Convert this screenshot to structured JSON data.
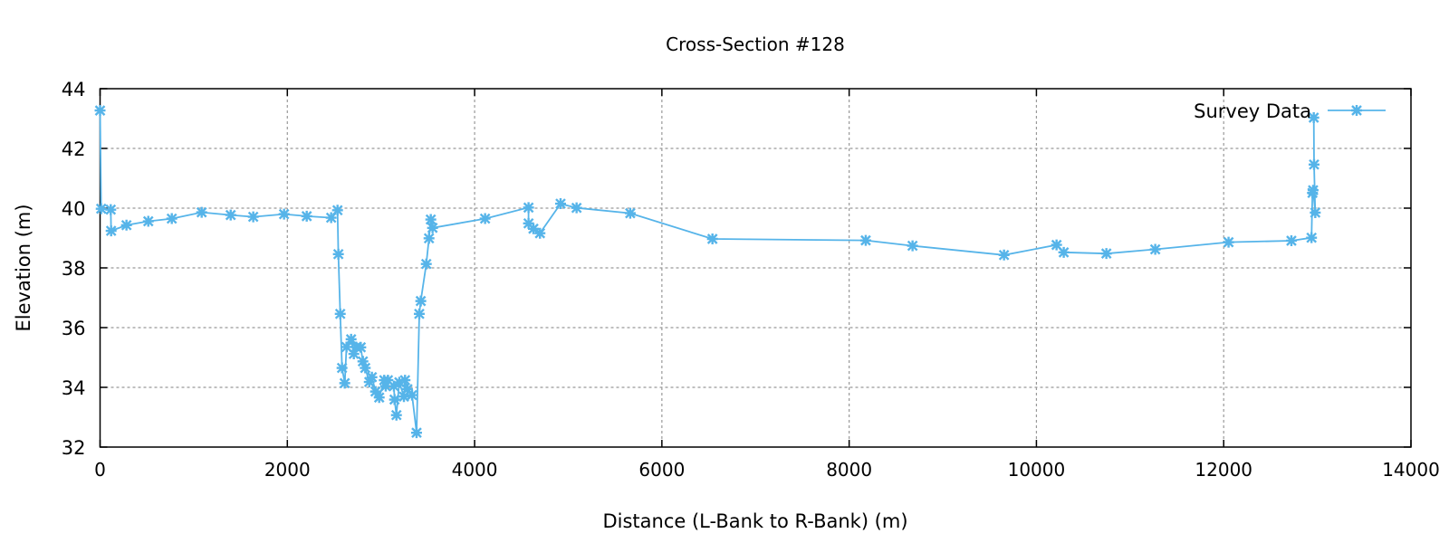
{
  "chart_data": {
    "type": "line",
    "title": "Cross-Section #128",
    "xlabel": "Distance (L-Bank to R-Bank) (m)",
    "ylabel": "Elevation (m)",
    "xlim": [
      0,
      14000
    ],
    "ylim": [
      32,
      44
    ],
    "xticks": [
      0,
      2000,
      4000,
      6000,
      8000,
      10000,
      12000,
      14000
    ],
    "yticks": [
      32,
      34,
      36,
      38,
      40,
      42,
      44
    ],
    "grid": true,
    "legend_position": "top-right",
    "series": [
      {
        "name": "Survey Data",
        "color": "#56b4e9",
        "marker": "star",
        "x": [
          0,
          12,
          114,
          118,
          282,
          515,
          766,
          1085,
          1395,
          1636,
          1965,
          2207,
          2468,
          2536,
          2545,
          2565,
          2584,
          2613,
          2632,
          2681,
          2710,
          2735,
          2784,
          2807,
          2832,
          2875,
          2903,
          2942,
          2981,
          3035,
          3051,
          3074,
          3138,
          3145,
          3165,
          3196,
          3245,
          3257,
          3283,
          3332,
          3380,
          3409,
          3425,
          3484,
          3513,
          3532,
          3551,
          4112,
          4576,
          4576,
          4628,
          4698,
          4918,
          5089,
          5662,
          6540,
          8177,
          8677,
          9654,
          10215,
          10292,
          10747,
          11269,
          12052,
          12723,
          12938,
          12948,
          12955,
          12978,
          12965,
          12962
        ],
        "y": [
          43.27,
          39.98,
          39.95,
          39.24,
          39.43,
          39.56,
          39.65,
          39.86,
          39.77,
          39.71,
          39.8,
          39.73,
          39.68,
          39.93,
          38.46,
          36.46,
          34.65,
          34.14,
          35.35,
          35.61,
          35.12,
          35.35,
          35.34,
          34.87,
          34.65,
          34.18,
          34.34,
          33.86,
          33.66,
          34.24,
          34.04,
          34.24,
          34.04,
          33.59,
          33.07,
          34.17,
          33.69,
          34.24,
          33.94,
          33.74,
          32.48,
          36.46,
          36.89,
          38.13,
          38.99,
          39.62,
          39.34,
          39.65,
          40.02,
          39.49,
          39.31,
          39.16,
          40.15,
          40.01,
          39.83,
          38.97,
          38.92,
          38.74,
          38.43,
          38.77,
          38.52,
          38.48,
          38.62,
          38.86,
          38.91,
          39.01,
          40.51,
          40.6,
          39.85,
          41.46,
          43.03
        ]
      }
    ]
  }
}
